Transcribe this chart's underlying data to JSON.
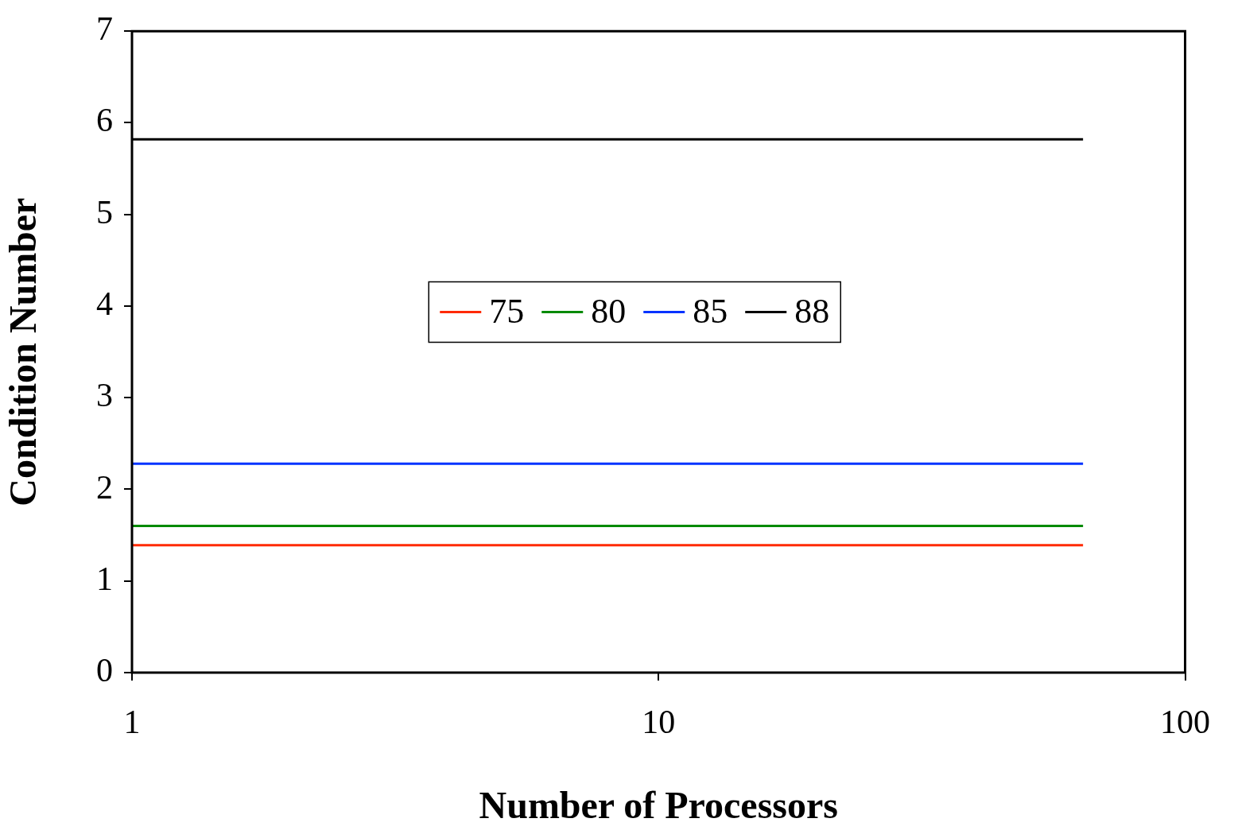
{
  "chart_data": {
    "type": "line",
    "xlabel": "Number of Processors",
    "ylabel": "Condition Number",
    "log": "x",
    "xlim": [
      1,
      100
    ],
    "xticks": [
      1,
      10,
      100
    ],
    "ylim": [
      0,
      7
    ],
    "yticks": [
      0,
      1,
      2,
      3,
      4,
      5,
      6,
      7
    ],
    "grid": false,
    "legend": "center",
    "marker": "none",
    "line_style": "solid",
    "x": [
      1,
      64
    ],
    "series": [
      {
        "name": "75",
        "color": "#ff2a00",
        "values": [
          1.39,
          1.39
        ]
      },
      {
        "name": "80",
        "color": "#008a00",
        "values": [
          1.6,
          1.6
        ]
      },
      {
        "name": "85",
        "color": "#0033ff",
        "values": [
          2.28,
          2.28
        ]
      },
      {
        "name": "88",
        "color": "#000000",
        "values": [
          5.82,
          5.82
        ]
      }
    ]
  }
}
